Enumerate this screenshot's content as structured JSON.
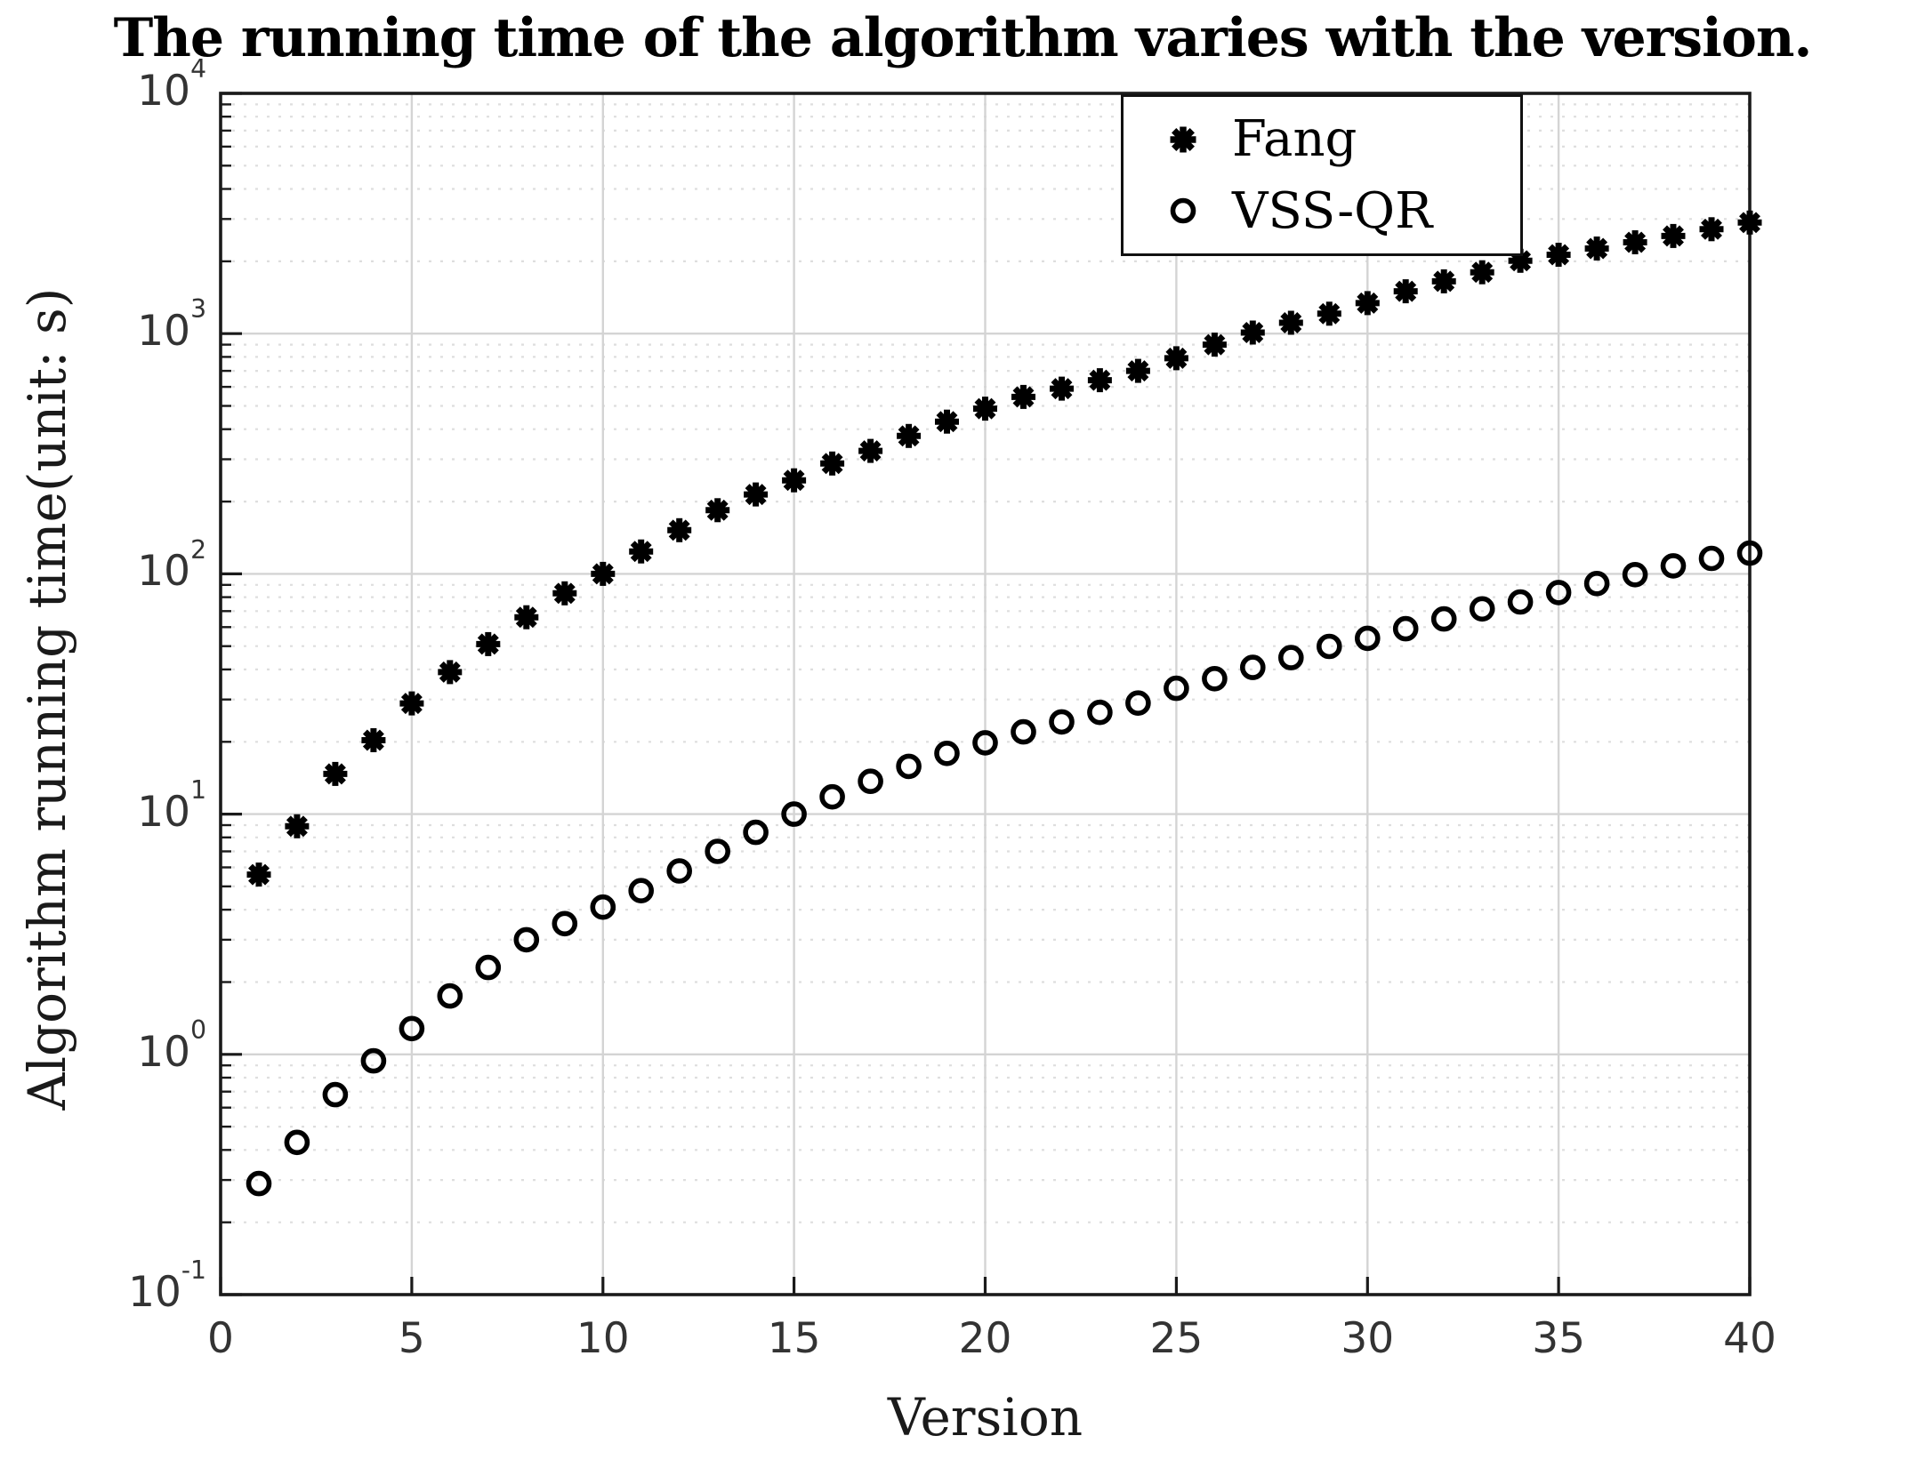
{
  "title": "The running time of the algorithm varies with the version.",
  "colors": {
    "marker": "#000000",
    "axis": "#1a1a1a",
    "tick_text": "#333333",
    "grid_major": "#d4d4d4",
    "grid_minor": "#dedede",
    "background": "#ffffff"
  },
  "chart_data": {
    "type": "scatter",
    "title": "The running time of the algorithm varies with the version.",
    "xlabel": "Version",
    "ylabel": "Algorithm running time(unit: s)",
    "x_scale": "linear",
    "y_scale": "log",
    "xlim": [
      0,
      40
    ],
    "ylim": [
      0.1,
      10000
    ],
    "x_ticks": [
      0,
      5,
      10,
      15,
      20,
      25,
      30,
      35,
      40
    ],
    "y_tick_exponents": [
      4,
      3,
      2,
      1,
      0,
      -1
    ],
    "y_tick_base": "10",
    "grid": "major solid, log minor dotted",
    "legend_position": "top-right",
    "legend": {
      "entries": [
        {
          "label": "Fang",
          "marker": "asterisk"
        },
        {
          "label": "VSS-QR",
          "marker": "circle"
        }
      ]
    },
    "x": [
      1,
      2,
      3,
      4,
      5,
      6,
      7,
      8,
      9,
      10,
      11,
      12,
      13,
      14,
      15,
      16,
      17,
      18,
      19,
      20,
      21,
      22,
      23,
      24,
      25,
      26,
      27,
      28,
      29,
      30,
      31,
      32,
      33,
      34,
      35,
      36,
      37,
      38,
      39,
      40
    ],
    "series": [
      {
        "name": "Fang",
        "marker": "asterisk",
        "values": [
          5.6,
          8.9,
          14.7,
          20.3,
          28.9,
          39,
          51,
          66,
          83,
          100,
          124,
          152,
          184,
          214,
          245,
          288,
          325,
          375,
          430,
          487,
          545,
          590,
          640,
          700,
          790,
          900,
          1010,
          1110,
          1210,
          1340,
          1500,
          1650,
          1800,
          2010,
          2130,
          2260,
          2400,
          2550,
          2720,
          2900
        ]
      },
      {
        "name": "VSS-QR",
        "marker": "circle",
        "values": [
          0.29,
          0.43,
          0.68,
          0.94,
          1.28,
          1.75,
          2.3,
          3.0,
          3.5,
          4.1,
          4.8,
          5.8,
          7.0,
          8.4,
          10,
          11.8,
          13.7,
          15.8,
          17.9,
          19.8,
          22,
          24.2,
          26.5,
          29,
          33.4,
          36.6,
          40.8,
          44.8,
          49.9,
          53.9,
          59.1,
          64.9,
          71.5,
          76.4,
          83.6,
          91.1,
          99.2,
          108,
          116,
          122
        ]
      }
    ]
  }
}
